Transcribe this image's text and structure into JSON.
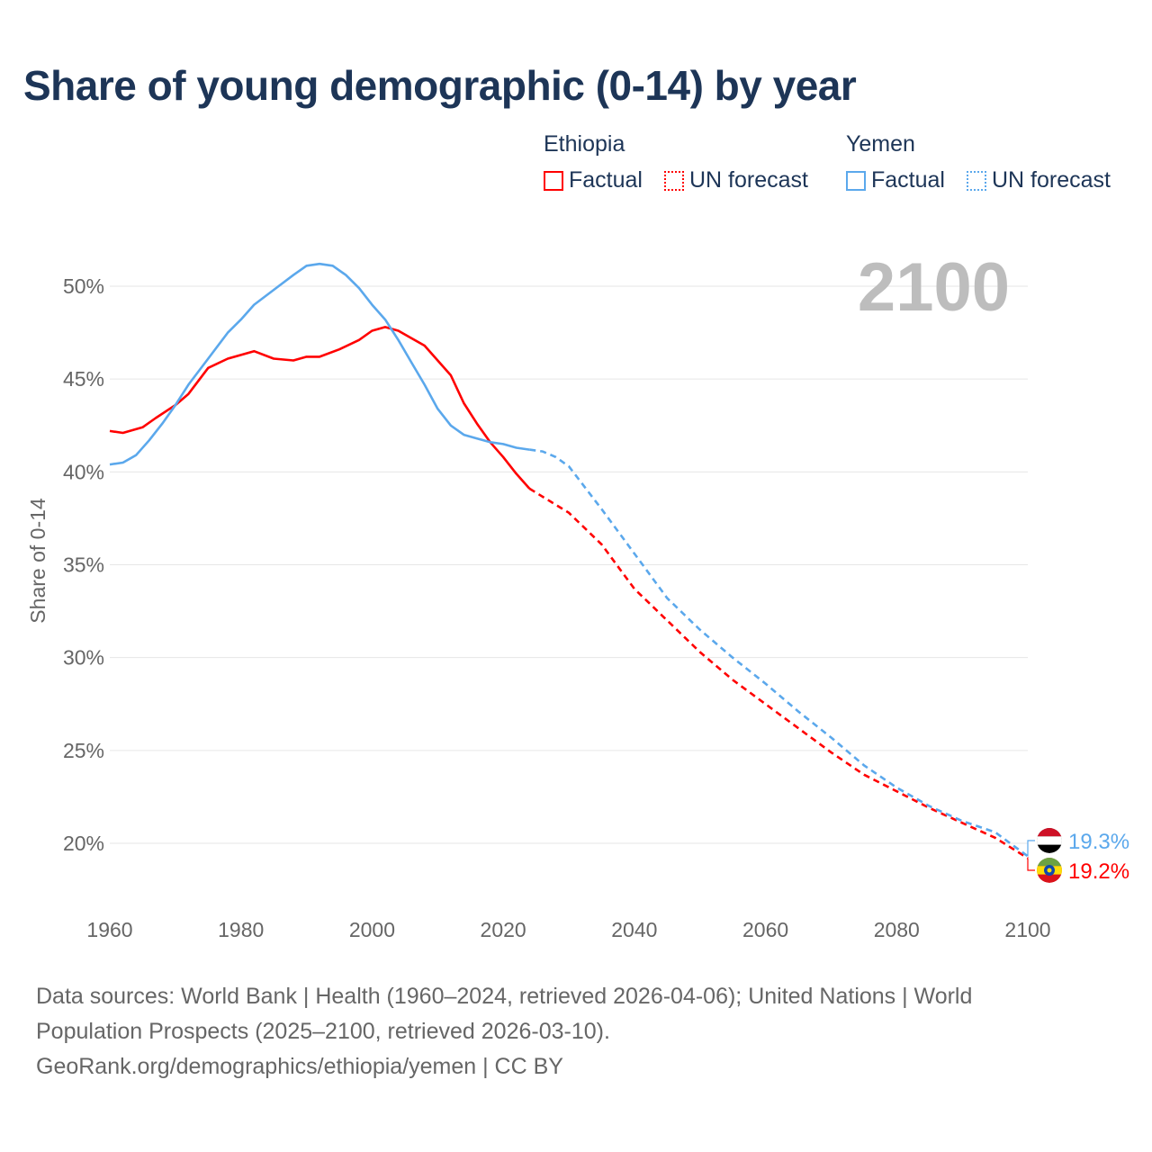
{
  "title": "Share of young demographic (0-14) by year",
  "current_year": "2100",
  "legend": {
    "groups": [
      {
        "country": "Ethiopia",
        "color": "#ff0000",
        "factual": "Factual",
        "forecast": "UN forecast"
      },
      {
        "country": "Yemen",
        "color": "#5ba8ec",
        "factual": "Factual",
        "forecast": "UN forecast"
      }
    ]
  },
  "footer": {
    "line1": "Data sources: World Bank | Health (1960–2024, retrieved 2026-04-06); United Nations | World",
    "line2": "Population Prospects (2025–2100, retrieved 2026-03-10).",
    "line3": "GeoRank.org/demographics/ethiopia/yemen | CC BY"
  },
  "chart_data": {
    "type": "line",
    "title": "Share of young demographic (0-14) by year",
    "xlabel": "",
    "ylabel": "Share of 0-14",
    "xlim": [
      1960,
      2100
    ],
    "ylim": [
      17.5,
      52
    ],
    "xticks": [
      "1960",
      "1980",
      "2000",
      "2020",
      "2040",
      "2060",
      "2080",
      "2100"
    ],
    "yticks": [
      "20%",
      "25%",
      "30%",
      "35%",
      "40%",
      "45%",
      "50%"
    ],
    "grid": true,
    "factual_until": 2024,
    "series": [
      {
        "name": "Ethiopia",
        "color": "#ff0000",
        "end_label": "19.2%",
        "x": [
          1960,
          1962,
          1965,
          1967,
          1970,
          1972,
          1975,
          1978,
          1982,
          1985,
          1988,
          1990,
          1992,
          1995,
          1998,
          2000,
          2002,
          2004,
          2006,
          2008,
          2010,
          2012,
          2014,
          2016,
          2018,
          2020,
          2022,
          2024,
          2030,
          2035,
          2040,
          2045,
          2050,
          2055,
          2060,
          2065,
          2070,
          2075,
          2080,
          2085,
          2090,
          2095,
          2100
        ],
        "y": [
          42.2,
          42.1,
          42.4,
          42.9,
          43.6,
          44.2,
          45.6,
          46.1,
          46.5,
          46.1,
          46.0,
          46.2,
          46.2,
          46.6,
          47.1,
          47.6,
          47.8,
          47.6,
          47.2,
          46.8,
          46.0,
          45.2,
          43.7,
          42.6,
          41.6,
          40.8,
          39.9,
          39.1,
          37.8,
          36.1,
          33.7,
          32.0,
          30.3,
          28.8,
          27.5,
          26.2,
          24.9,
          23.7,
          22.8,
          21.9,
          21.1,
          20.3,
          19.2
        ]
      },
      {
        "name": "Yemen",
        "color": "#5ba8ec",
        "end_label": "19.3%",
        "x": [
          1960,
          1962,
          1964,
          1966,
          1968,
          1970,
          1972,
          1975,
          1978,
          1980,
          1982,
          1985,
          1988,
          1990,
          1992,
          1994,
          1996,
          1998,
          2000,
          2002,
          2004,
          2006,
          2008,
          2010,
          2012,
          2014,
          2016,
          2018,
          2020,
          2022,
          2024,
          2026,
          2028,
          2030,
          2035,
          2040,
          2045,
          2050,
          2055,
          2060,
          2065,
          2070,
          2075,
          2080,
          2085,
          2090,
          2095,
          2100
        ],
        "y": [
          40.4,
          40.5,
          40.9,
          41.7,
          42.6,
          43.6,
          44.7,
          46.1,
          47.5,
          48.2,
          49.0,
          49.8,
          50.6,
          51.1,
          51.2,
          51.1,
          50.6,
          49.9,
          49.0,
          48.2,
          47.1,
          45.9,
          44.7,
          43.4,
          42.5,
          42.0,
          41.8,
          41.6,
          41.5,
          41.3,
          41.2,
          41.1,
          40.8,
          40.3,
          38.0,
          35.6,
          33.2,
          31.5,
          30.0,
          28.6,
          27.1,
          25.7,
          24.2,
          23.0,
          22.0,
          21.2,
          20.6,
          19.3
        ]
      }
    ]
  }
}
